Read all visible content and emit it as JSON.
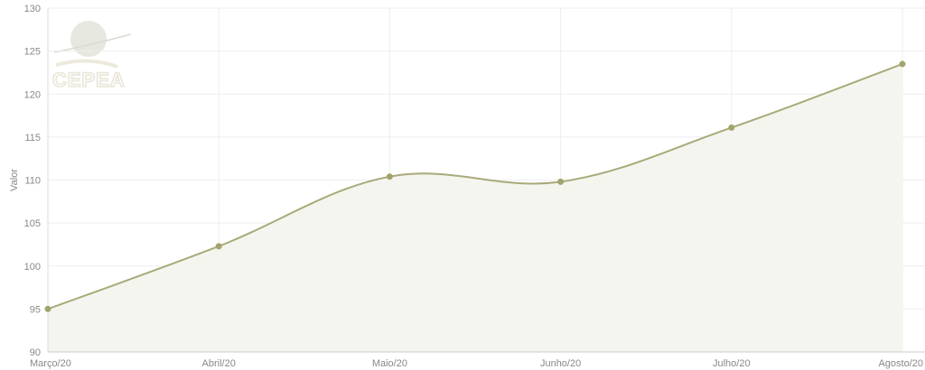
{
  "logo": {
    "text": "CEPEA"
  },
  "chart_data": {
    "type": "area",
    "title": "",
    "xlabel": "",
    "ylabel": "Valor",
    "categories": [
      "Março/20",
      "Abril/20",
      "Maio/20",
      "Junho/20",
      "Julho/20",
      "Agosto/20"
    ],
    "series": [
      {
        "values": [
          95.0,
          102.3,
          110.4,
          109.8,
          116.1,
          123.5
        ]
      }
    ],
    "ylim": [
      90,
      130
    ],
    "yticks": [
      90,
      95,
      100,
      105,
      110,
      115,
      120,
      125,
      130
    ],
    "grid": true,
    "legend": "none",
    "colors": {
      "line": "#a8aa7a",
      "fill": "#f4f5ee",
      "point": "#a3a46c",
      "grid": "#eeeeee"
    }
  }
}
